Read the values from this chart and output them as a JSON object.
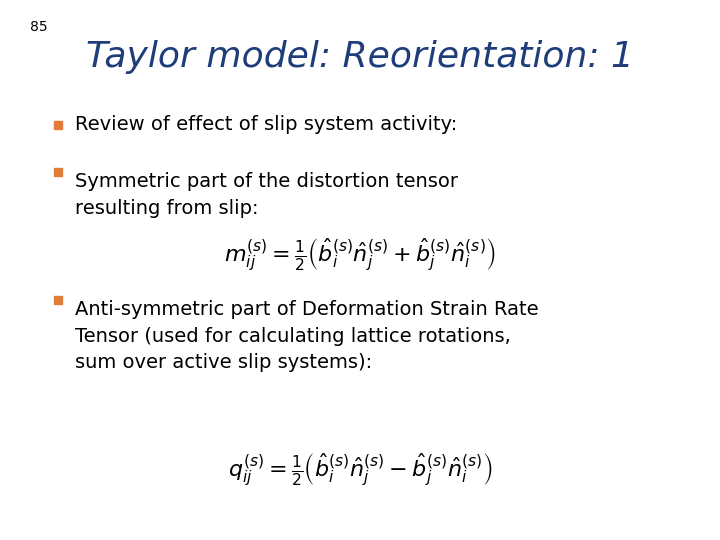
{
  "slide_number": "85",
  "title": "Taylor model: Reorientation: 1",
  "title_color": "#1F3D7A",
  "title_fontstyle": "italic",
  "title_fontsize": 26,
  "background_color": "#ffffff",
  "bullet_color": "#E07B39",
  "text_fontsize": 14,
  "formula_fontsize": 16,
  "slide_num_fontsize": 10,
  "bullet1_text": "Review of effect of slip system activity:",
  "bullet2_text": "Symmetric part of the distortion tensor\nresulting from slip:",
  "bullet3_text": "Anti-symmetric part of Deformation Strain Rate\nTensor (used for calculating lattice rotations,\nsum over active slip systems):",
  "formula1": "$m_{ij}^{(s)} = \\frac{1}{2}\\left(\\hat{b}_i^{(s)}\\hat{n}_j^{(s)} + \\hat{b}_j^{(s)}\\hat{n}_i^{(s)}\\right)$",
  "formula2": "$q_{ij}^{(s)} = \\frac{1}{2}\\left(\\hat{b}_i^{(s)}\\hat{n}_j^{(s)} - \\hat{b}_j^{(s)}\\hat{n}_i^{(s)}\\right)$"
}
